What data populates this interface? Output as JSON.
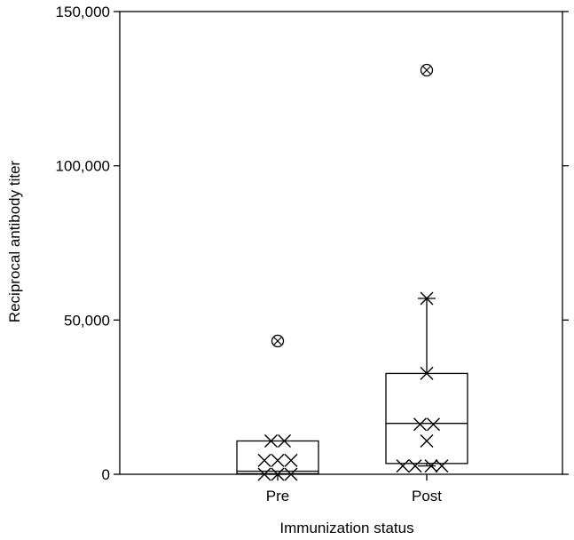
{
  "chart_data": {
    "type": "box",
    "xlabel": "Immunization status",
    "ylabel": "Reciprocal antibody titer",
    "ylim": [
      0,
      150000
    ],
    "y_ticks": [
      {
        "value": 0,
        "label": "0"
      },
      {
        "value": 50000,
        "label": "50,000"
      },
      {
        "value": 100000,
        "label": "100,000"
      },
      {
        "value": 150000,
        "label": "150,000"
      }
    ],
    "categories": [
      "Pre",
      "Post"
    ],
    "boxes": [
      {
        "category": "Pre",
        "q1": 200,
        "median": 1000,
        "q3": 10800,
        "whisker_low": 0,
        "whisker_high": 10800,
        "points": [
          0,
          0,
          0,
          4500,
          4500,
          4500,
          10800,
          10800
        ],
        "outliers": [
          43200
        ]
      },
      {
        "category": "Post",
        "q1": 3500,
        "median": 16500,
        "q3": 32700,
        "whisker_low": 2700,
        "whisker_high": 57000,
        "points": [
          2700,
          2700,
          2700,
          2700,
          10800,
          16200,
          16200,
          32700,
          57000
        ],
        "outliers": [
          131000
        ]
      }
    ],
    "grid": false,
    "point_marker": "x",
    "outlier_marker": "circled-x"
  }
}
